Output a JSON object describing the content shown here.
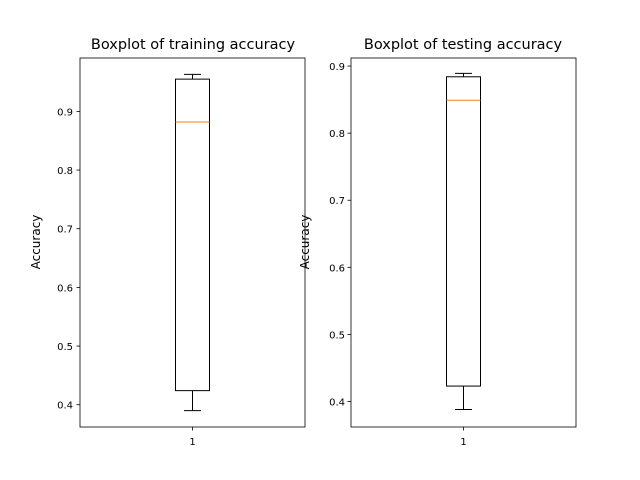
{
  "chart_data": [
    {
      "type": "box",
      "title": "Boxplot of training accuracy",
      "xlabel": "",
      "ylabel": "Accuracy",
      "x_ticks": [
        "1"
      ],
      "ylim": [
        0.362,
        0.991
      ],
      "yticks": [
        0.4,
        0.5,
        0.6,
        0.7,
        0.8,
        0.9
      ],
      "ytick_labels": [
        "0.4",
        "0.5",
        "0.6",
        "0.7",
        "0.8",
        "0.9"
      ],
      "boxes": [
        {
          "label": "1",
          "whisker_low": 0.39,
          "q1": 0.424,
          "median": 0.882,
          "q3": 0.955,
          "whisker_high": 0.963
        }
      ]
    },
    {
      "type": "box",
      "title": "Boxplot of testing accuracy",
      "xlabel": "",
      "ylabel": "Accuracy",
      "x_ticks": [
        "1"
      ],
      "ylim": [
        0.362,
        0.912
      ],
      "yticks": [
        0.4,
        0.5,
        0.6,
        0.7,
        0.8,
        0.9
      ],
      "ytick_labels": [
        "0.4",
        "0.5",
        "0.6",
        "0.7",
        "0.8",
        "0.9"
      ],
      "boxes": [
        {
          "label": "1",
          "whisker_low": 0.388,
          "q1": 0.423,
          "median": 0.849,
          "q3": 0.884,
          "whisker_high": 0.889
        }
      ]
    }
  ],
  "colors": {
    "box": "#000000",
    "median": "#ff7f0e",
    "background": "#ffffff"
  }
}
